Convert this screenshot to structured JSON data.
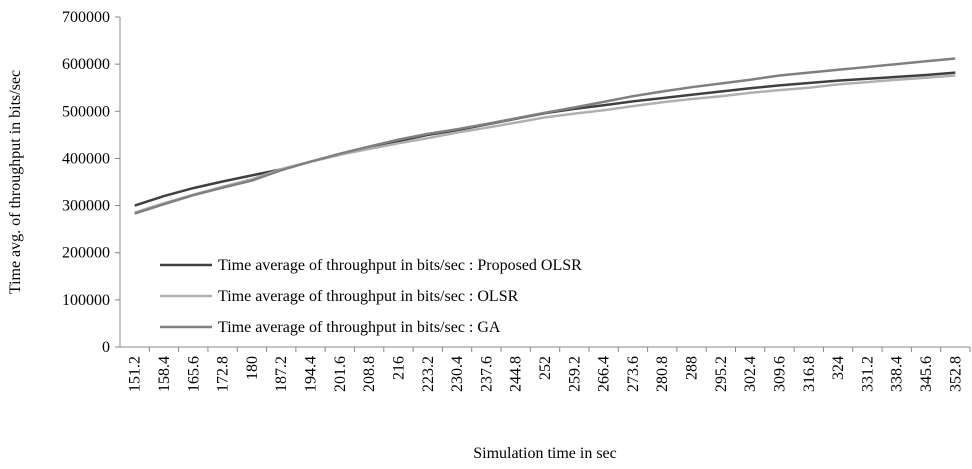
{
  "chart_data": {
    "type": "line",
    "x_label": "Simulation time in sec",
    "y_label": "Time avg. of throughput in bits/sec",
    "categories": [
      "151.2",
      "158.4",
      "165.6",
      "172.8",
      "180",
      "187.2",
      "194.4",
      "201.6",
      "208.8",
      "216",
      "223.2",
      "230.4",
      "237.6",
      "244.8",
      "252",
      "259.2",
      "266.4",
      "273.6",
      "280.8",
      "288",
      "295.2",
      "302.4",
      "309.6",
      "316.8",
      "324",
      "331.2",
      "338.4",
      "345.6",
      "352.8"
    ],
    "series": [
      {
        "name": "Time average of throughput in bits/sec : Proposed OLSR",
        "color": "#404040",
        "values": [
          300000,
          320000,
          337000,
          351000,
          364000,
          377000,
          393000,
          408000,
          423000,
          437000,
          450000,
          460000,
          472000,
          484000,
          496000,
          505000,
          513000,
          521000,
          528000,
          535000,
          542000,
          549000,
          555000,
          560000,
          565000,
          569000,
          573000,
          577000,
          582000
        ]
      },
      {
        "name": "Time average of throughput in bits/sec : OLSR",
        "color": "#b0b0b0",
        "values": [
          285000,
          305000,
          323000,
          340000,
          356000,
          377000,
          393000,
          408000,
          420000,
          432000,
          443000,
          455000,
          465000,
          476000,
          487000,
          495000,
          502000,
          511000,
          519000,
          526000,
          532000,
          539000,
          545000,
          550000,
          557000,
          562000,
          567000,
          571000,
          576000
        ]
      },
      {
        "name": "Time average of throughput in bits/sec : GA",
        "color": "#808080",
        "values": [
          283000,
          303000,
          322000,
          338000,
          353000,
          375000,
          393000,
          410000,
          425000,
          440000,
          452000,
          462000,
          473000,
          485000,
          497000,
          508000,
          520000,
          532000,
          542000,
          551000,
          559000,
          567000,
          576000,
          582000,
          588000,
          594000,
          600000,
          606000,
          612000
        ]
      }
    ],
    "ylim": [
      0,
      700000
    ],
    "yticks": [
      0,
      100000,
      200000,
      300000,
      400000,
      500000,
      600000,
      700000
    ],
    "grid": false,
    "legend": "left"
  }
}
